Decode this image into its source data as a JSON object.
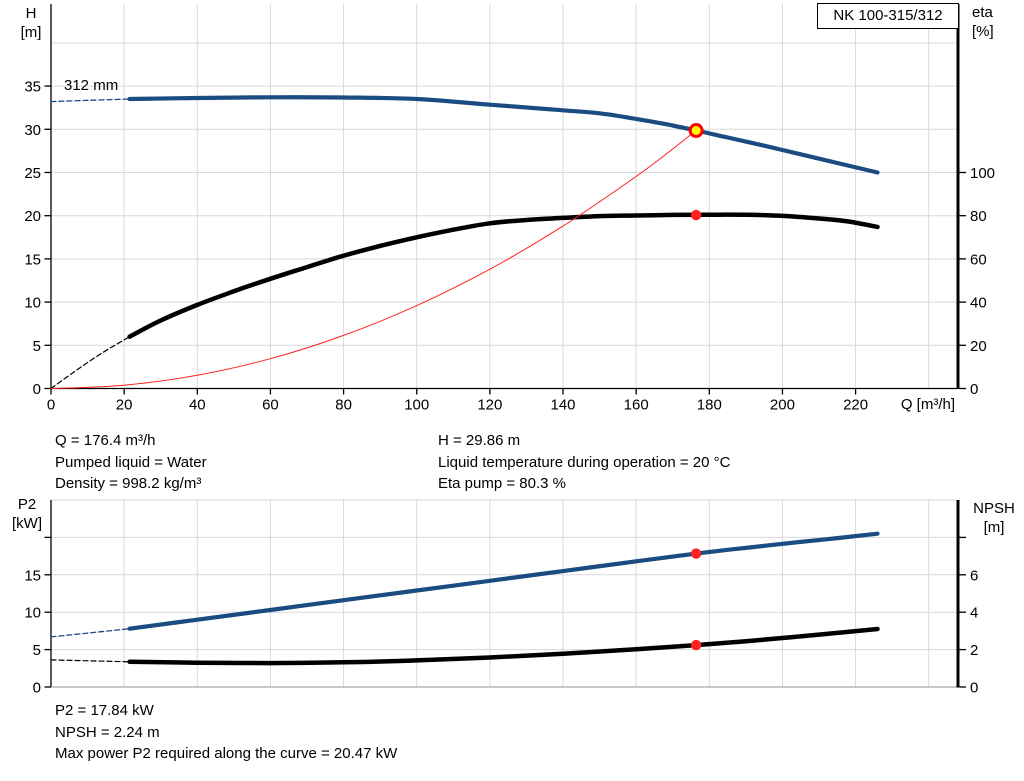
{
  "header": {
    "pump_model": "NK 100-315/312"
  },
  "colors": {
    "curve_blue": "#1a4c82",
    "curve_black": "#000000",
    "system_red": "#ff2020",
    "marker_red": "#ff0000",
    "marker_yellow": "#ffff00",
    "grid": "#d9d9d9",
    "axis": "#000000",
    "axis_gray": "#a6a6a6",
    "background": "#ffffff"
  },
  "chart_data": [
    {
      "type": "line",
      "name": "head-efficiency-chart",
      "annotation": "312 mm",
      "x_axis": {
        "label": "Q [m³/h]",
        "min": 0,
        "max": 248,
        "ticks": [
          0,
          20,
          40,
          60,
          80,
          100,
          120,
          140,
          160,
          180,
          200,
          220
        ],
        "grid": [
          20,
          40,
          60,
          80,
          100,
          120,
          140,
          160,
          180,
          200,
          220,
          240
        ]
      },
      "y_left": {
        "label": "H",
        "unit": "[m]",
        "min": 0,
        "max": 44.5,
        "ticks": [
          0,
          5,
          10,
          15,
          20,
          25,
          30,
          35
        ],
        "grid": [
          5,
          10,
          15,
          20,
          25,
          30,
          35,
          40
        ]
      },
      "y_right": {
        "label": "eta",
        "unit": "[%]",
        "min": 0,
        "max": 178,
        "ticks": [
          0,
          20,
          40,
          60,
          80,
          100
        ]
      },
      "series": [
        {
          "id": "head-curve-dashed",
          "axis": "left",
          "color": "blue",
          "width": 1.3,
          "dash": "5 3",
          "points": [
            [
              0,
              33.2
            ],
            [
              10,
              33.35
            ],
            [
              21.5,
              33.5
            ]
          ]
        },
        {
          "id": "head-curve",
          "name": "312 mm",
          "axis": "left",
          "color": "blue",
          "width": 4.2,
          "points": [
            [
              21.5,
              33.5
            ],
            [
              40,
              33.62
            ],
            [
              60,
              33.7
            ],
            [
              80,
              33.68
            ],
            [
              100,
              33.5
            ],
            [
              120,
              32.85
            ],
            [
              140,
              32.2
            ],
            [
              150,
              31.85
            ],
            [
              160,
              31.2
            ],
            [
              168,
              30.6
            ],
            [
              176.4,
              29.86
            ],
            [
              185,
              29.05
            ],
            [
              195,
              28.1
            ],
            [
              205,
              27.1
            ],
            [
              215,
              26.1
            ],
            [
              226,
              25.0
            ]
          ]
        },
        {
          "id": "efficiency-curve-dashed",
          "axis": "right",
          "color": "black",
          "width": 1.2,
          "dash": "5 3",
          "points": [
            [
              0,
              0
            ],
            [
              7,
              8.5
            ],
            [
              14,
              16.5
            ],
            [
              21.5,
              24
            ]
          ]
        },
        {
          "id": "efficiency-curve",
          "axis": "right",
          "color": "black",
          "width": 4.5,
          "points": [
            [
              21.5,
              24
            ],
            [
              30,
              31.5
            ],
            [
              40,
              38.7
            ],
            [
              50,
              45
            ],
            [
              60,
              50.8
            ],
            [
              70,
              56.2
            ],
            [
              80,
              61.5
            ],
            [
              90,
              66
            ],
            [
              100,
              70
            ],
            [
              110,
              73.5
            ],
            [
              120,
              76.5
            ],
            [
              130,
              78
            ],
            [
              140,
              79
            ],
            [
              150,
              79.8
            ],
            [
              160,
              80.1
            ],
            [
              170,
              80.35
            ],
            [
              180,
              80.45
            ],
            [
              190,
              80.4
            ],
            [
              200,
              79.9
            ],
            [
              210,
              78.7
            ],
            [
              218,
              77.3
            ],
            [
              226,
              74.8
            ]
          ]
        },
        {
          "id": "system-curve",
          "axis": "left",
          "color": "red",
          "width": 1,
          "points": [
            [
              0,
              0
            ],
            [
              20,
              0.38
            ],
            [
              40,
              1.54
            ],
            [
              60,
              3.45
            ],
            [
              80,
              6.14
            ],
            [
              100,
              9.59
            ],
            [
              120,
              13.81
            ],
            [
              140,
              18.79
            ],
            [
              160,
              24.55
            ],
            [
              170,
              27.72
            ],
            [
              176.4,
              29.86
            ]
          ]
        }
      ],
      "markers": [
        {
          "id": "duty-point",
          "axis": "left",
          "x": 176.4,
          "y": 29.86,
          "r": 6,
          "fill": "yellow",
          "stroke": "red",
          "stroke_width": 3,
          "interactable": true
        },
        {
          "id": "efficiency-point",
          "axis": "right",
          "x": 176.4,
          "y": 80.3,
          "r": 5.2,
          "fill": "red"
        }
      ]
    },
    {
      "type": "line",
      "name": "power-npsh-chart",
      "x_axis": {
        "label": "",
        "min": 0,
        "max": 248,
        "ticks": [],
        "grid": [
          20,
          40,
          60,
          80,
          100,
          120,
          140,
          160,
          180,
          200,
          220,
          240
        ]
      },
      "y_left": {
        "label": "P2",
        "unit": "[kW]",
        "min": 0,
        "max": 25,
        "ticks": [
          0,
          5,
          10,
          15,
          20
        ],
        "tick_labels": [
          "0",
          "5",
          "10",
          "15",
          ""
        ],
        "grid": [
          5,
          10,
          15,
          20,
          25
        ]
      },
      "y_right": {
        "label": "NPSH",
        "unit": "[m]",
        "min": 0,
        "max": 10,
        "ticks": [
          0,
          2,
          4,
          6,
          8
        ],
        "tick_labels": [
          "0",
          "2",
          "4",
          "6",
          ""
        ]
      },
      "series": [
        {
          "id": "p2-curve-dashed",
          "axis": "left",
          "color": "blue",
          "width": 1.3,
          "dash": "5 3",
          "points": [
            [
              0,
              6.7
            ],
            [
              10,
              7.2
            ],
            [
              21.5,
              7.8
            ]
          ]
        },
        {
          "id": "p2-curve",
          "axis": "left",
          "color": "blue",
          "width": 4.2,
          "points": [
            [
              21.5,
              7.8
            ],
            [
              40,
              9.0
            ],
            [
              60,
              10.3
            ],
            [
              80,
              11.6
            ],
            [
              100,
              12.9
            ],
            [
              120,
              14.2
            ],
            [
              140,
              15.5
            ],
            [
              160,
              16.8
            ],
            [
              176.4,
              17.84
            ],
            [
              190,
              18.6
            ],
            [
              205,
              19.4
            ],
            [
              215,
              19.9
            ],
            [
              226,
              20.5
            ]
          ]
        },
        {
          "id": "npsh-curve-dashed",
          "axis": "right",
          "color": "black",
          "width": 1.2,
          "dash": "5 3",
          "points": [
            [
              0,
              1.45
            ],
            [
              21.5,
              1.35
            ]
          ]
        },
        {
          "id": "npsh-curve",
          "axis": "right",
          "color": "black",
          "width": 4.5,
          "points": [
            [
              21.5,
              1.35
            ],
            [
              40,
              1.3
            ],
            [
              60,
              1.28
            ],
            [
              80,
              1.32
            ],
            [
              100,
              1.42
            ],
            [
              120,
              1.58
            ],
            [
              140,
              1.78
            ],
            [
              160,
              2.02
            ],
            [
              176.4,
              2.24
            ],
            [
              190,
              2.45
            ],
            [
              200,
              2.62
            ],
            [
              210,
              2.8
            ],
            [
              226,
              3.1
            ]
          ]
        }
      ],
      "markers": [
        {
          "id": "p2-point",
          "axis": "left",
          "x": 176.4,
          "y": 17.84,
          "r": 5.2,
          "fill": "red"
        },
        {
          "id": "npsh-point",
          "axis": "right",
          "x": 176.4,
          "y": 2.24,
          "r": 5.2,
          "fill": "red"
        }
      ]
    }
  ],
  "info_top": {
    "left": [
      "Q = 176.4 m³/h",
      "Pumped liquid = Water",
      "Density = 998.2 kg/m³"
    ],
    "right": [
      "H = 29.86 m",
      "Liquid temperature during operation = 20 °C",
      "Eta pump = 80.3 %"
    ]
  },
  "info_bottom": [
    "P2 = 17.84 kW",
    "NPSH = 2.24 m",
    "Max power P2 required along the curve = 20.47 kW"
  ]
}
